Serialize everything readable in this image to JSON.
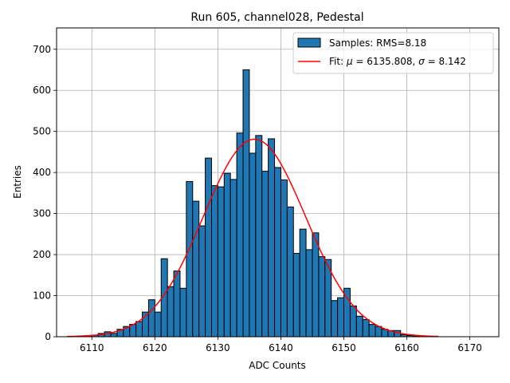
{
  "chart_data": {
    "type": "bar",
    "title": "Run 605, channel028, Pedestal",
    "xlabel": "ADC Counts",
    "ylabel": "Entries",
    "xlim": [
      6104.4,
      6174.6
    ],
    "ylim": [
      0,
      752
    ],
    "xticks": [
      6110,
      6120,
      6130,
      6140,
      6150,
      6160,
      6170
    ],
    "yticks": [
      0,
      100,
      200,
      300,
      400,
      500,
      600,
      700
    ],
    "grid": true,
    "legend_position": "top-right",
    "histogram": {
      "name": "Samples",
      "legend_label": "Samples: RMS=8.18",
      "color": "#1f77b4",
      "edge_color": "#000000",
      "bin_edges": [
        6107,
        6108,
        6109,
        6110,
        6111,
        6112,
        6113,
        6114,
        6115,
        6116,
        6117,
        6118,
        6119,
        6120,
        6121,
        6122,
        6123,
        6124,
        6125,
        6126,
        6127,
        6128,
        6129,
        6130,
        6131,
        6132,
        6133,
        6134,
        6135,
        6136,
        6137,
        6138,
        6139,
        6140,
        6141,
        6142,
        6143,
        6144,
        6145,
        6146,
        6147,
        6148,
        6149,
        6150,
        6151,
        6152,
        6153,
        6154,
        6155,
        6156,
        6157,
        6158,
        6159,
        6160,
        6161,
        6162
      ],
      "counts": [
        1,
        2,
        3,
        4,
        8,
        12,
        8,
        18,
        25,
        30,
        37,
        60,
        90,
        60,
        190,
        122,
        160,
        118,
        378,
        330,
        270,
        435,
        368,
        365,
        398,
        383,
        496,
        650,
        447,
        490,
        403,
        482,
        412,
        382,
        316,
        203,
        262,
        212,
        253,
        195,
        188,
        88,
        95,
        118,
        75,
        50,
        42,
        30,
        25,
        18,
        15,
        15,
        5,
        3,
        2
      ]
    },
    "fit": {
      "name": "Fit",
      "legend_label_prefix": "Fit: ",
      "legend_mu_symbol": "μ",
      "legend_mu_value": "= 6135.808, ",
      "legend_sigma_symbol": "σ",
      "legend_sigma_value": "= 8.142",
      "color": "#ff0000",
      "mu": 6135.808,
      "sigma": 8.142,
      "amplitude": 481,
      "x_range": [
        6106,
        6165
      ]
    }
  }
}
